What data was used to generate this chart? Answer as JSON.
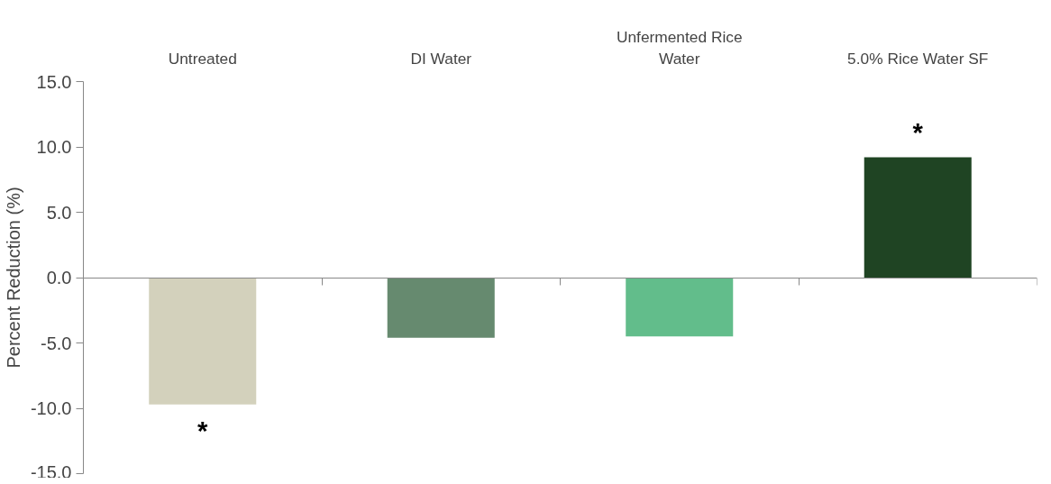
{
  "chart_data": {
    "type": "bar",
    "ylabel": "Percent Reduction (%)",
    "categories": [
      "Untreated",
      "DI Water",
      "Unfermented Rice Water",
      "5.0% Rice Water SF"
    ],
    "values": [
      -9.7,
      -4.6,
      -4.5,
      9.2
    ],
    "colors": [
      "#d3d1bc",
      "#668a6f",
      "#62bd8b",
      "#1f4423"
    ],
    "ylim": [
      -15,
      15
    ],
    "yticks": [
      {
        "value": -15,
        "label": "-15.0"
      },
      {
        "value": -10,
        "label": "-10.0"
      },
      {
        "value": -5,
        "label": "-5.0"
      },
      {
        "value": 0,
        "label": "0.0"
      },
      {
        "value": 5,
        "label": "5.0"
      },
      {
        "value": 10,
        "label": "10.0"
      },
      {
        "value": 15,
        "label": "15.0"
      }
    ],
    "value_labels": [
      "*",
      null,
      null,
      "*"
    ]
  }
}
